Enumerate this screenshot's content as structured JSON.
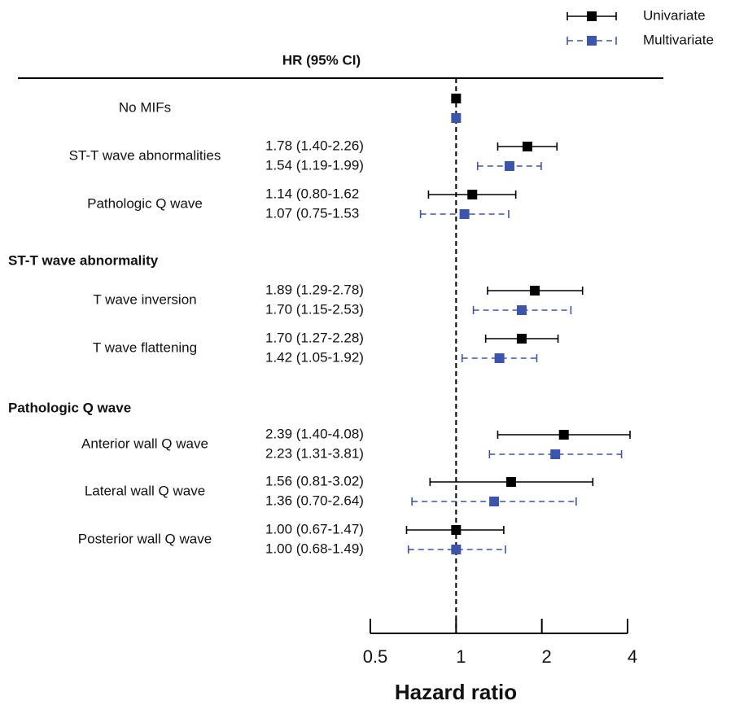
{
  "chart_data": {
    "type": "forest",
    "header": "HR (95% CI)",
    "xlabel": "Hazard ratio",
    "log_scale": true,
    "xlim": [
      0.5,
      4
    ],
    "xticks": [
      0.5,
      1,
      2,
      4
    ],
    "reference_line": 1,
    "legend": "top-right",
    "categories": [
      "No MIFs",
      "ST-T wave abnormalities",
      "Pathologic Q wave",
      "ST-T wave abnormality",
      "T wave inversion",
      "T wave flattening",
      "Pathologic Q wave",
      "Anterior wall Q wave",
      "Lateral wall Q wave",
      "Posterior wall Q wave"
    ],
    "category_bold": [
      false,
      false,
      false,
      true,
      false,
      false,
      true,
      false,
      false,
      false
    ],
    "series": [
      {
        "name": "Univariate",
        "color": "#000000",
        "line_style": "solid",
        "values": [
          1,
          1.78,
          1.14,
          null,
          1.89,
          1.7,
          null,
          2.39,
          1.56,
          1.0
        ],
        "lower": [
          null,
          1.4,
          0.8,
          null,
          1.29,
          1.27,
          null,
          1.4,
          0.81,
          0.67
        ],
        "upper": [
          null,
          2.26,
          1.62,
          null,
          2.78,
          2.28,
          null,
          4.08,
          3.02,
          1.47
        ],
        "value_labels": [
          null,
          "1.78 (1.40-2.26)",
          "1.14 (0.80-1.62",
          null,
          "1.89 (1.29-2.78)",
          "1.70 (1.27-2.28)",
          null,
          "2.39 (1.40-4.08)",
          "1.56 (0.81-3.02)",
          "1.00 (0.67-1.47)"
        ]
      },
      {
        "name": "Multivariate",
        "color": "#3b55ad",
        "line_style": "dashed",
        "values": [
          1,
          1.54,
          1.07,
          null,
          1.7,
          1.42,
          null,
          2.23,
          1.36,
          1.0
        ],
        "lower": [
          null,
          1.19,
          0.75,
          null,
          1.15,
          1.05,
          null,
          1.31,
          0.7,
          0.68
        ],
        "upper": [
          null,
          1.99,
          1.53,
          null,
          2.53,
          1.92,
          null,
          3.81,
          2.64,
          1.49
        ],
        "value_labels": [
          null,
          "1.54 (1.19-1.99)",
          "1.07 (0.75-1.53",
          null,
          "1.70 (1.15-2.53)",
          "1.42 (1.05-1.92)",
          null,
          "2.23 (1.31-3.81)",
          "1.36 (0.70-2.64)",
          "1.00 (0.68-1.49)"
        ]
      }
    ]
  }
}
